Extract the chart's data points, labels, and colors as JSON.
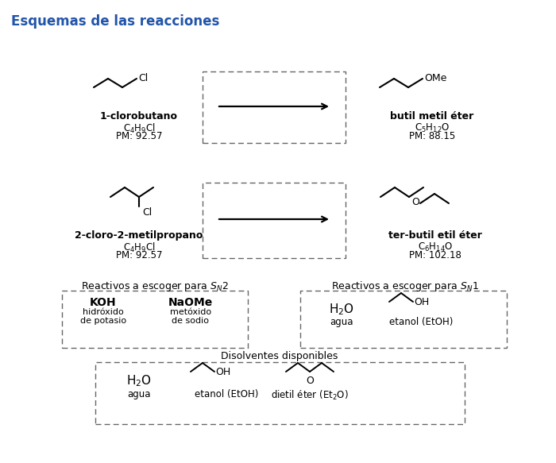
{
  "title": "Esquemas de las reacciones",
  "title_color": "#2255AA",
  "background_color": "#ffffff",
  "fig_width": 7.0,
  "fig_height": 5.83,
  "reaction1": {
    "reactant_name": "1-clorobutano",
    "reactant_formula": "C$_4$H$_9$Cl",
    "reactant_pm": "PM: 92.57",
    "product_name": "butil metil éter",
    "product_formula": "C$_5$H$_{12}$O",
    "product_pm": "PM: 88.15"
  },
  "reaction2": {
    "reactant_name": "2-cloro-2-metilpropano",
    "reactant_formula": "C$_4$H$_9$Cl",
    "reactant_pm": "PM: 92.57",
    "product_name": "ter-butil etil éter",
    "product_formula": "C$_6$H$_{14}$O",
    "product_pm": "PM: 102.18"
  },
  "sn2_title": "Reactivos a escoger para $S_N$2",
  "sn1_title": "Reactivos a escoger para $S_N$1",
  "solvents_title": "Disolventes disponibles"
}
